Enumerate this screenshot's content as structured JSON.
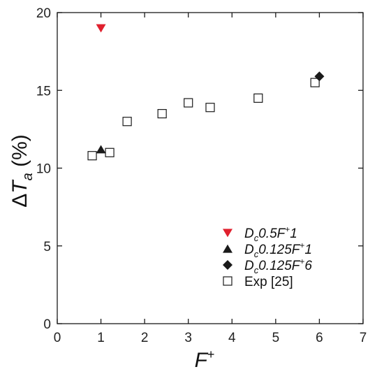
{
  "chart_data": {
    "type": "scatter",
    "title": "",
    "xlabel": {
      "base": "F",
      "sup": "+"
    },
    "ylabel": {
      "delta": "Δ",
      "var": "T",
      "sub": "a",
      "unit": "(%)"
    },
    "xlim": [
      0,
      7
    ],
    "ylim": [
      0,
      20
    ],
    "xticks": [
      0,
      1,
      2,
      3,
      4,
      5,
      6,
      7
    ],
    "yticks": [
      0,
      5,
      10,
      15,
      20
    ],
    "grid": false,
    "legend_position": "bottom-right",
    "series": [
      {
        "name": "D_c0.5F⁺1",
        "label_parts": {
          "a": "D",
          "sub": "c",
          "b": "0.5F",
          "sup": "+",
          "c": "1"
        },
        "marker": "triangle-down",
        "color": "#e0202e",
        "points": [
          {
            "x": 1.0,
            "y": 19.0
          }
        ]
      },
      {
        "name": "D_c0.125F⁺1",
        "label_parts": {
          "a": "D",
          "sub": "c",
          "b": "0.125F",
          "sup": "+",
          "c": "1"
        },
        "marker": "triangle-up",
        "color": "#1a1a1a",
        "points": [
          {
            "x": 1.0,
            "y": 11.2
          }
        ]
      },
      {
        "name": "D_c0.125F⁺6",
        "label_parts": {
          "a": "D",
          "sub": "c",
          "b": "0.125F",
          "sup": "+",
          "c": "6"
        },
        "marker": "diamond",
        "color": "#1a1a1a",
        "points": [
          {
            "x": 6.0,
            "y": 15.9
          }
        ]
      },
      {
        "name": "Exp [25]",
        "label_parts": {
          "plain": "Exp [25]"
        },
        "marker": "square-open",
        "color": "#1a1a1a",
        "points": [
          {
            "x": 0.8,
            "y": 10.8
          },
          {
            "x": 1.2,
            "y": 11.0
          },
          {
            "x": 1.6,
            "y": 13.0
          },
          {
            "x": 2.4,
            "y": 13.5
          },
          {
            "x": 3.0,
            "y": 14.2
          },
          {
            "x": 3.5,
            "y": 13.9
          },
          {
            "x": 4.6,
            "y": 14.5
          },
          {
            "x": 5.9,
            "y": 15.5
          }
        ]
      }
    ]
  }
}
